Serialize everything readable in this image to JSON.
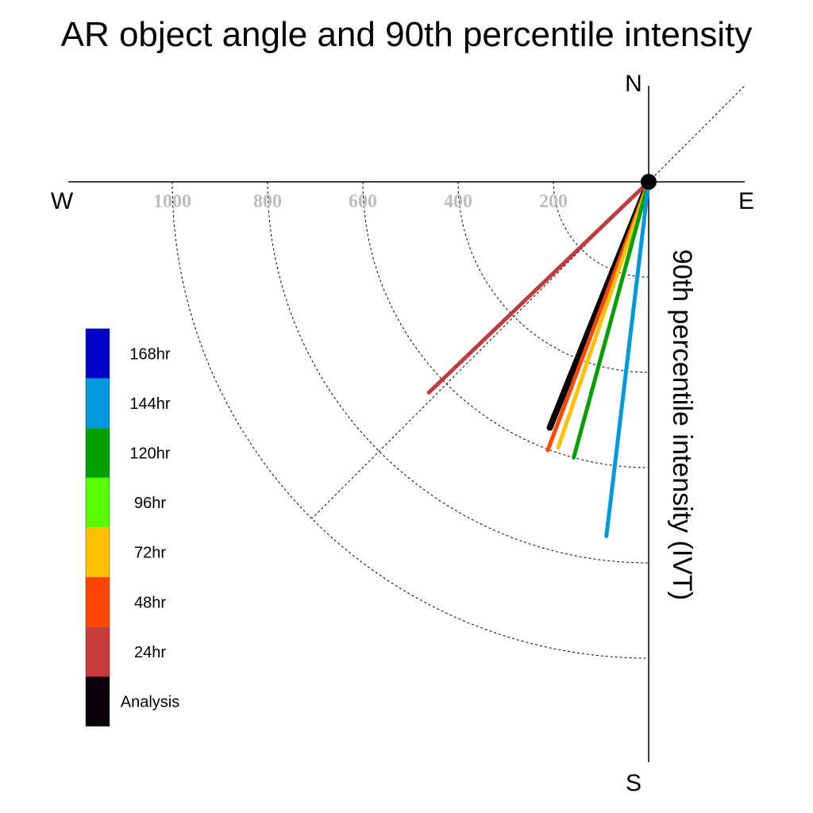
{
  "chart_data": {
    "type": "polar-vector",
    "title": "AR object angle and 90th percentile intensity",
    "ylabel": "90th percentile intensity (IVT)",
    "compass": {
      "N": "N",
      "E": "E",
      "S": "S",
      "W": "W"
    },
    "radial_ticks": [
      200,
      400,
      600,
      800,
      1000
    ],
    "radial_max": 1000,
    "series": [
      {
        "name": "Analysis",
        "angle_deg": 201.9,
        "intensity": 556,
        "color": "#000000"
      },
      {
        "name": "24hr",
        "angle_deg": 226.2,
        "intensity": 639,
        "color": "#c23b3b"
      },
      {
        "name": "48hr",
        "angle_deg": 200.6,
        "intensity": 602,
        "color": "#ff4500"
      },
      {
        "name": "72hr",
        "angle_deg": 198.8,
        "intensity": 589,
        "color": "#ffc000"
      },
      {
        "name": "120hr",
        "angle_deg": 195.2,
        "intensity": 600,
        "color": "#00a000"
      },
      {
        "name": "144hr",
        "angle_deg": 186.8,
        "intensity": 749,
        "color": "#0099dd"
      }
    ],
    "legend": [
      {
        "label": "168hr",
        "color": "#0000c8"
      },
      {
        "label": "144hr",
        "color": "#0099dd"
      },
      {
        "label": "120hr",
        "color": "#00a000"
      },
      {
        "label": "96hr",
        "color": "#55ff00"
      },
      {
        "label": "72hr",
        "color": "#ffc000"
      },
      {
        "label": "48hr",
        "color": "#ff4500"
      },
      {
        "label": "24hr",
        "color": "#c93b3b"
      },
      {
        "label": "Analysis",
        "color": "#0a0008"
      }
    ]
  }
}
